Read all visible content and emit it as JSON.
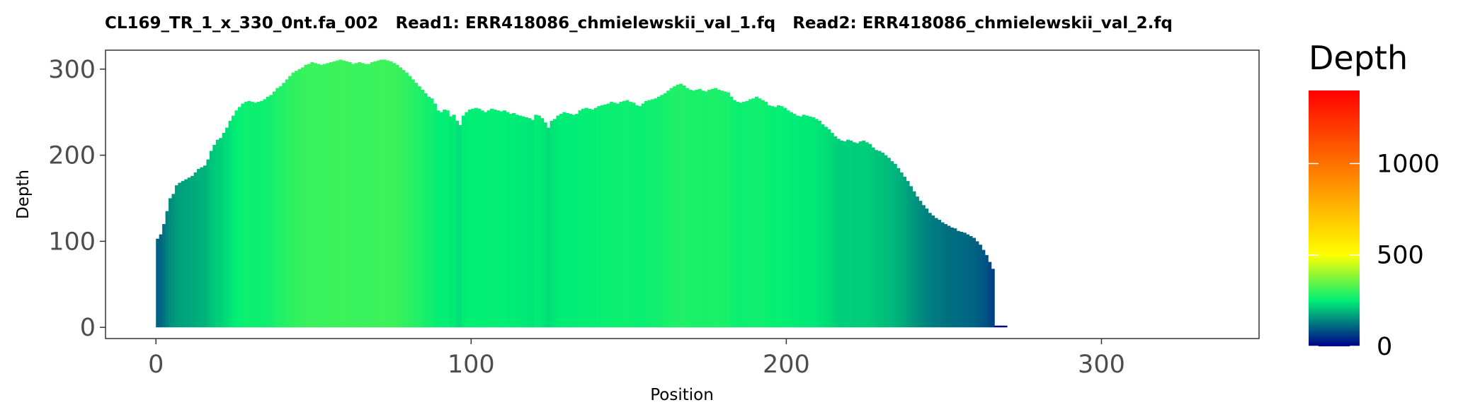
{
  "chart_data": {
    "type": "bar",
    "title": "CL169_TR_1_x_330_0nt.fa_002   Read1: ERR418086_chmielewskii_val_1.fq   Read2: ERR418086_chmielewskii_val_2.fq",
    "xlabel": "Position",
    "ylabel": "Depth",
    "xlim": [
      -16,
      350
    ],
    "ylim": [
      -13,
      322
    ],
    "x_ticks": [
      0,
      100,
      200,
      300
    ],
    "y_ticks": [
      0,
      100,
      200,
      300
    ],
    "x_tick_labels": [
      "0",
      "100",
      "200",
      "300"
    ],
    "y_tick_labels": [
      "0",
      "100",
      "200",
      "300"
    ],
    "grid": false,
    "series": [
      {
        "x_start": 0,
        "values": [
          103,
          108,
          120,
          135,
          150,
          155,
          165,
          168,
          170,
          172,
          174,
          176,
          180,
          184,
          186,
          188,
          195,
          205,
          212,
          218,
          220,
          226,
          232,
          240,
          246,
          252,
          256,
          260,
          262,
          263,
          262,
          261,
          262,
          263,
          265,
          268,
          270,
          274,
          278,
          280,
          284,
          288,
          292,
          296,
          298,
          300,
          302,
          305,
          306,
          308,
          307,
          306,
          305,
          306,
          307,
          308,
          309,
          310,
          311,
          310,
          309,
          308,
          306,
          307,
          308,
          307,
          306,
          306,
          308,
          309,
          310,
          311,
          311,
          310,
          309,
          307,
          305,
          302,
          299,
          296,
          292,
          288,
          284,
          280,
          276,
          272,
          268,
          266,
          260,
          252,
          250,
          253,
          252,
          245,
          247,
          240,
          235,
          246,
          250,
          253,
          254,
          255,
          254,
          252,
          250,
          252,
          254,
          253,
          252,
          251,
          252,
          250,
          248,
          249,
          247,
          246,
          245,
          244,
          243,
          241,
          247,
          246,
          243,
          238,
          232,
          240,
          242,
          246,
          248,
          250,
          249,
          248,
          247,
          248,
          252,
          254,
          255,
          254,
          253,
          255,
          257,
          258,
          259,
          260,
          262,
          261,
          260,
          262,
          263,
          264,
          262,
          261,
          258,
          257,
          260,
          263,
          264,
          265,
          266,
          268,
          270,
          272,
          275,
          278,
          280,
          282,
          283,
          281,
          278,
          276,
          275,
          276,
          277,
          275,
          274,
          276,
          277,
          278,
          276,
          275,
          274,
          273,
          268,
          264,
          262,
          261,
          262,
          263,
          265,
          266,
          268,
          266,
          264,
          262,
          258,
          257,
          256,
          258,
          257,
          255,
          252,
          250,
          248,
          246,
          245,
          247,
          246,
          245,
          244,
          242,
          240,
          236,
          233,
          230,
          226,
          222,
          219,
          217,
          216,
          218,
          217,
          215,
          214,
          216,
          217,
          215,
          213,
          209,
          206,
          205,
          203,
          200,
          197,
          193,
          190,
          185,
          180,
          175,
          170,
          164,
          158,
          152,
          147,
          142,
          138,
          133,
          130,
          127,
          125,
          122,
          120,
          118,
          116,
          115,
          112,
          111,
          110,
          108,
          106,
          104,
          100,
          96,
          90,
          84,
          76,
          68,
          2,
          2,
          2,
          2
        ]
      }
    ],
    "color_scale": {
      "title": "Depth",
      "min": 0,
      "max": 1400,
      "colors": [
        "#00008b",
        "#00ee76",
        "#ffff00",
        "#ff0000"
      ],
      "ticks": [
        0,
        500,
        1000
      ],
      "tick_labels": [
        "0",
        "500",
        "1000"
      ]
    }
  }
}
